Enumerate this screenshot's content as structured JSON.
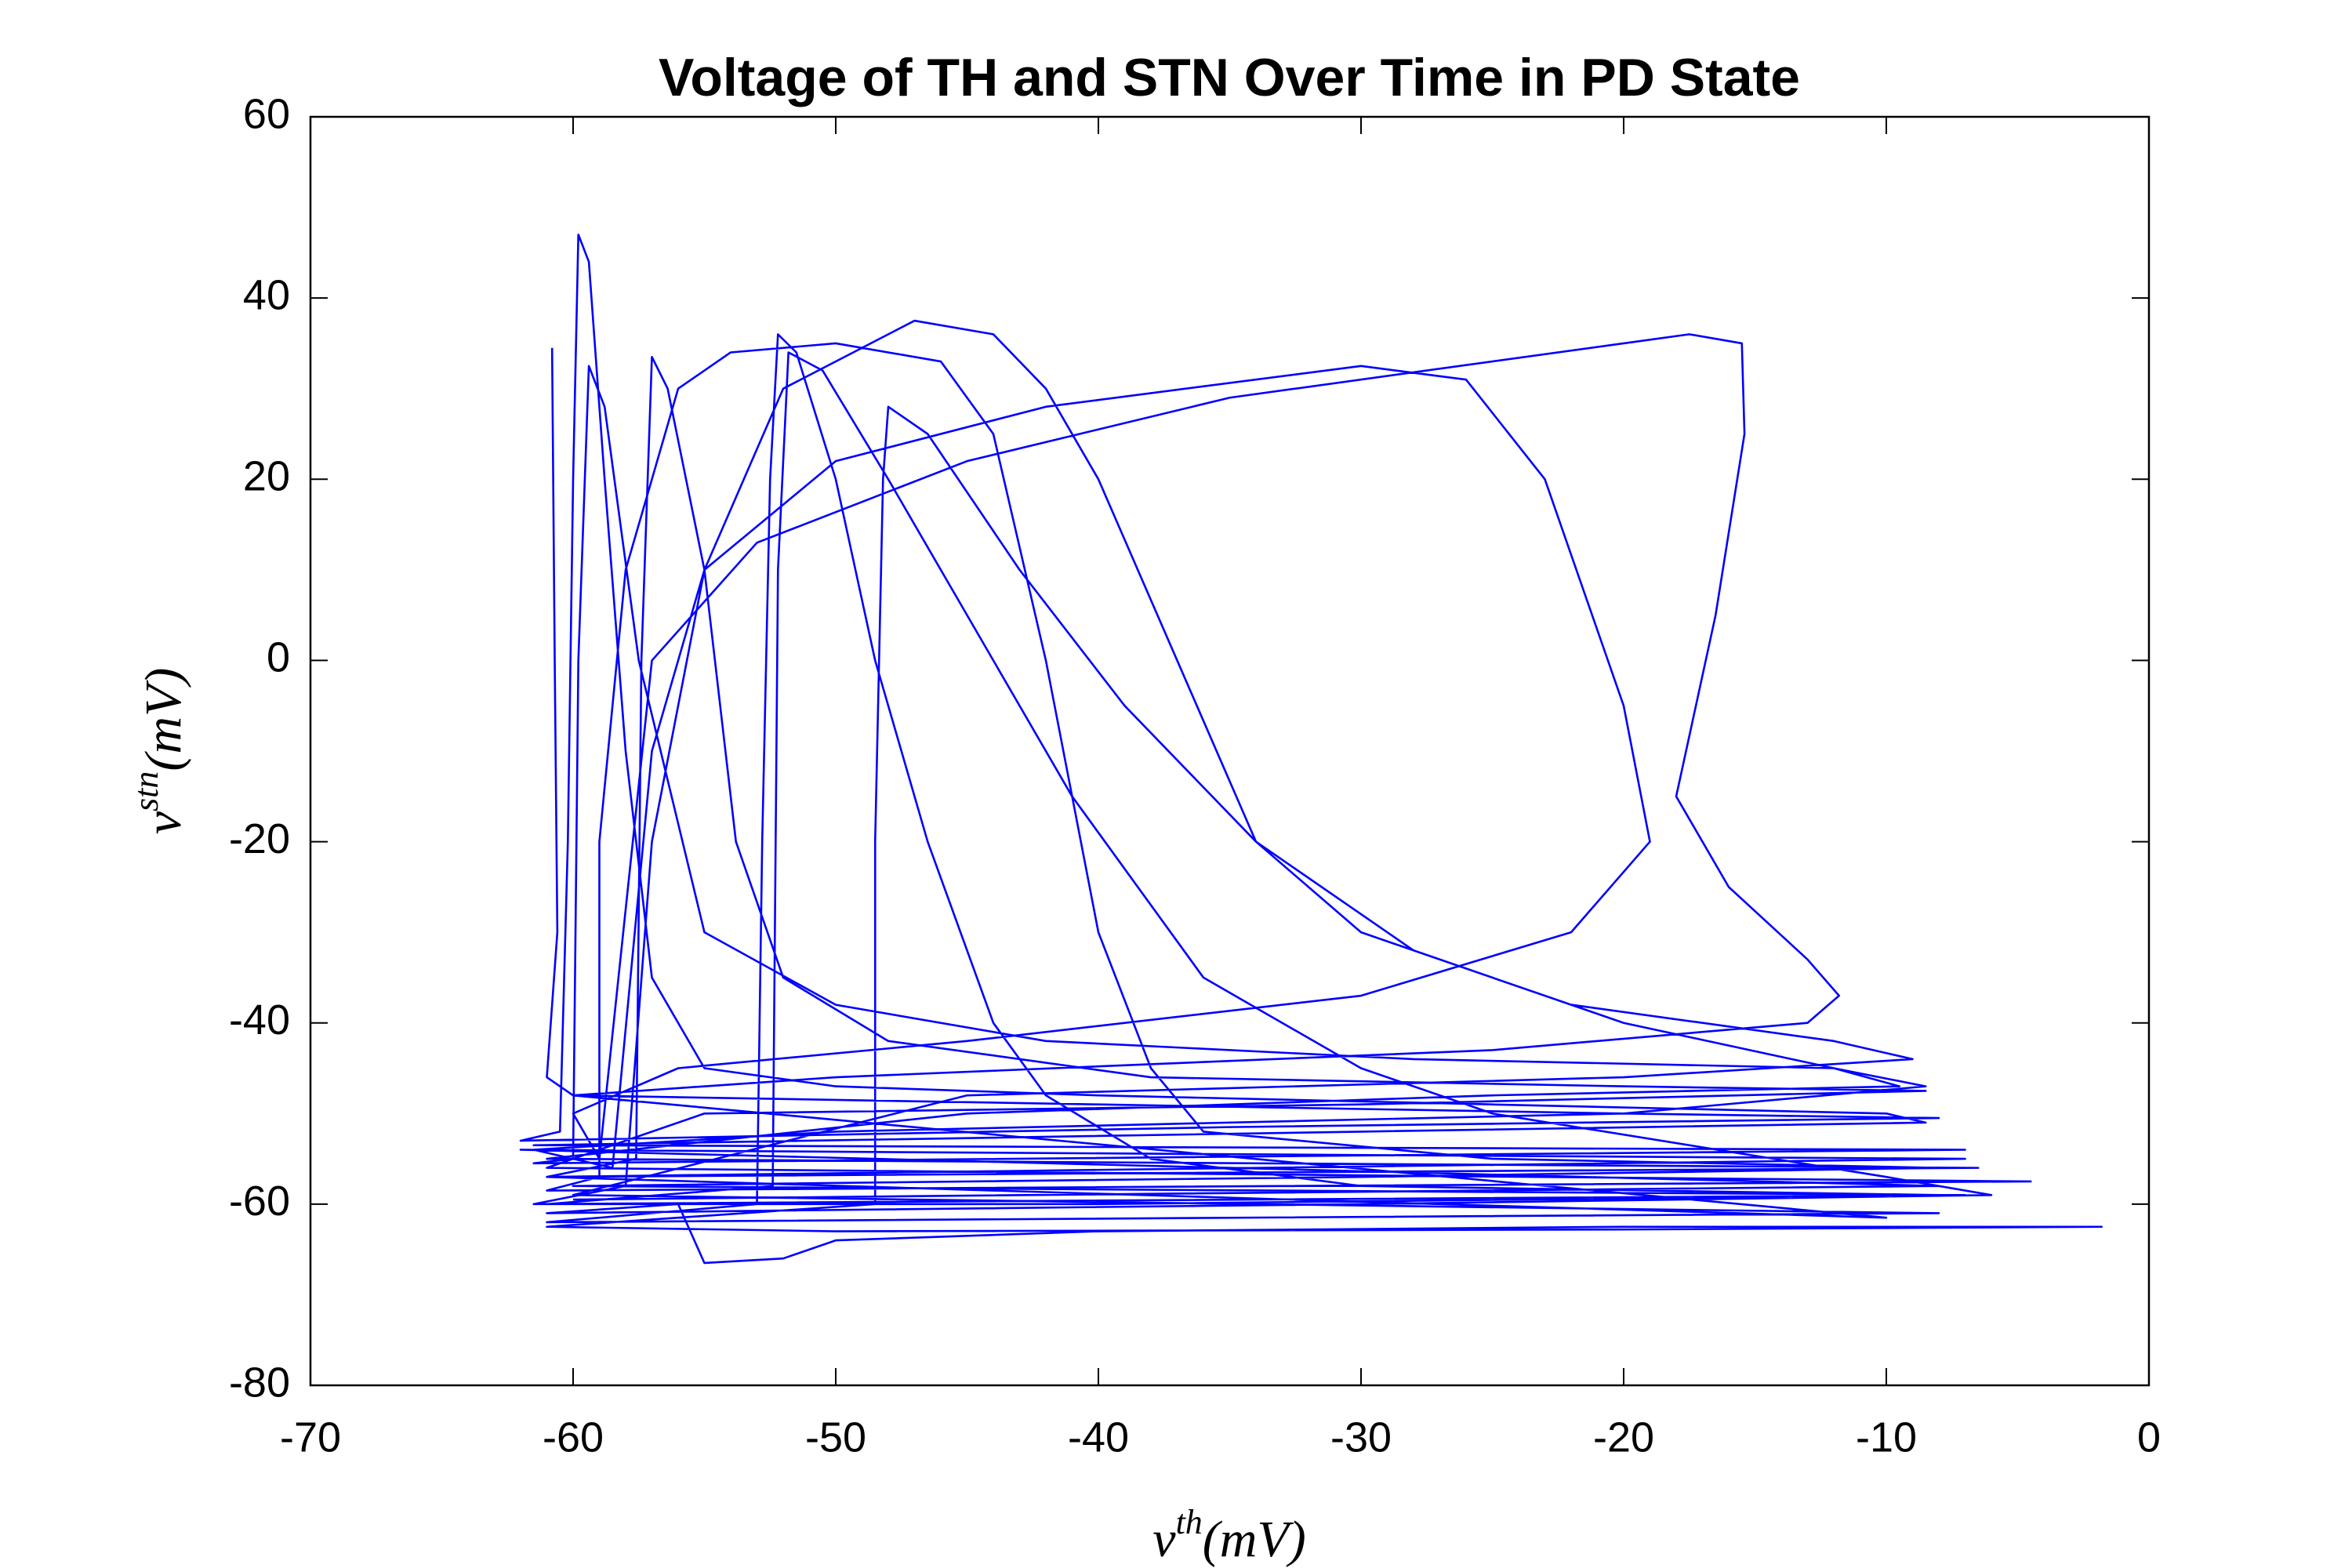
{
  "chart_data": {
    "type": "line",
    "title": "Voltage of TH and STN Over Time in PD State",
    "xlabel": [
      "v",
      "th",
      "(mV)"
    ],
    "ylabel": [
      "v",
      "stn",
      "(mV)"
    ],
    "xlim": [
      -70,
      0
    ],
    "xticks": [
      -70,
      -60,
      -50,
      -40,
      -30,
      -20,
      -10,
      0
    ],
    "ylim": [
      -80,
      60
    ],
    "yticks": [
      -80,
      -60,
      -40,
      -20,
      0,
      20,
      40,
      60
    ],
    "grid": false,
    "color": "#0000ff",
    "x": [
      -60.8,
      -60.7,
      -60.6,
      -61,
      -60,
      -40,
      -20,
      -8,
      -35,
      -62,
      -60.5,
      -60.2,
      -60,
      -59.8,
      -59.4,
      -58.8,
      -58,
      -57,
      -55,
      -50,
      -40,
      -25,
      -10,
      -8.5,
      -30,
      -61.5,
      -7,
      -61.5,
      -60,
      -59.8,
      -59.4,
      -58.8,
      -57.5,
      -55,
      -50,
      -42,
      -28,
      -12,
      -9.5,
      -25,
      -45,
      -61,
      -6.5,
      -61,
      -57.6,
      -57.4,
      -57,
      -56.4,
      -55,
      -53.8,
      -52,
      -48,
      -38,
      -20,
      -8.5,
      -30,
      -55,
      -61,
      -4.5,
      -61,
      -59,
      -59,
      -58,
      -56,
      -54,
      -50,
      -46,
      -44,
      -42,
      -40,
      -38,
      -36,
      -25,
      -8,
      -30,
      -60,
      -7,
      -61.5,
      -58,
      -57,
      -55,
      -52,
      -47,
      -44,
      -42,
      -40,
      -37,
      -34,
      -30,
      -22,
      -12,
      -9,
      -20,
      -45,
      -60,
      -8,
      -61,
      -53,
      -52.8,
      -52.5,
      -52.2,
      -51.5,
      -50,
      -48.5,
      -46.5,
      -44,
      -42,
      -38,
      -30,
      -8,
      -40,
      -61,
      -52.4,
      -52.2,
      -51.8,
      -50.5,
      -48,
      -45,
      -41,
      -36,
      -30,
      -25,
      -10,
      -6,
      -30,
      -61,
      -56,
      -55,
      -52,
      -50,
      -40,
      -20,
      -1.8,
      -20,
      -50,
      -61,
      -48.5,
      -48.5,
      -48.2,
      -48,
      -46.5,
      -43,
      -39,
      -34,
      -28,
      -20,
      -12,
      -8.5,
      -20,
      -50,
      -61.5,
      -58.5,
      -57,
      -55,
      -50,
      -42,
      -30,
      -26,
      -23,
      -20,
      -19,
      -22,
      -30,
      -45,
      -56,
      -60,
      -59,
      -57,
      -53,
      -45,
      -35,
      -20,
      -17.5,
      -15.5,
      -15.4,
      -16.5,
      -18,
      -16,
      -13,
      -11.8,
      -13,
      -25,
      -50,
      -60,
      -10,
      -61,
      -7,
      -62,
      -8,
      -60
    ],
    "values": [
      34.5,
      0,
      -30,
      -46,
      -48,
      -49,
      -50,
      -50.5,
      -51.5,
      -53,
      -52,
      -20,
      20,
      47,
      44,
      20,
      -10,
      -35,
      -45,
      -47,
      -48,
      -49,
      -50,
      -51,
      -52,
      -53.5,
      -54,
      -55.5,
      -55,
      0,
      32.5,
      28,
      0,
      -30,
      -38,
      -42,
      -44,
      -45,
      -47,
      -48,
      -50,
      -55,
      -56,
      -57,
      -55,
      0,
      33.5,
      30,
      10,
      -20,
      -35,
      -42,
      -46,
      -47,
      -47.5,
      -49,
      -50,
      -56,
      -57.5,
      -58.5,
      -57,
      -20,
      10,
      30,
      34,
      35,
      33,
      25,
      0,
      -30,
      -45,
      -52,
      -55,
      -56,
      -57,
      -58,
      -59,
      -60,
      -58,
      -20,
      10,
      30,
      37.5,
      36,
      30,
      20,
      0,
      -20,
      -30,
      -38,
      -42,
      -44,
      -46,
      -48,
      -59,
      -61,
      -62,
      -60,
      -20,
      20,
      36,
      34,
      20,
      0,
      -20,
      -40,
      -48,
      -55,
      -58,
      -59,
      -60,
      -60,
      -58,
      10,
      34,
      32,
      20,
      5,
      -15,
      -35,
      -45,
      -50,
      -57,
      -59,
      -60,
      -61,
      -60,
      -66.5,
      -66,
      -64,
      -63,
      -62.5,
      -62.5,
      -62.8,
      -63,
      -62.5,
      -60,
      -20,
      20,
      28,
      25,
      10,
      -5,
      -20,
      -32,
      -40,
      -45,
      -47,
      -50,
      -52,
      -54,
      -56,
      -10,
      10,
      22,
      28,
      32.5,
      31,
      20,
      -5,
      -20,
      -30,
      -37,
      -42,
      -45,
      -50,
      -55,
      0,
      13,
      22,
      29,
      35,
      36,
      35,
      25,
      5,
      -15,
      -25,
      -33,
      -37,
      -40,
      -43,
      -46,
      -48,
      -61.5,
      -57,
      -55,
      -54,
      -58,
      -59.5
    ]
  }
}
